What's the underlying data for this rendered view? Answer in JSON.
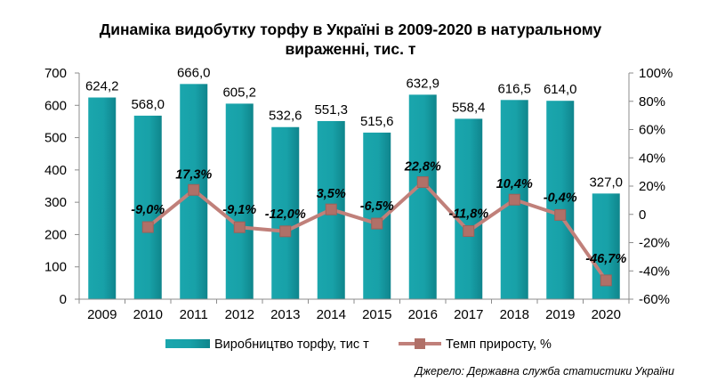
{
  "chart_data": {
    "type": "bar+line",
    "title_lines": [
      "Динаміка видобутку торфу в Україні в 2009-2020 в натуральному",
      "вираженні, тис. т"
    ],
    "categories": [
      "2009",
      "2010",
      "2011",
      "2012",
      "2013",
      "2014",
      "2015",
      "2016",
      "2017",
      "2018",
      "2019",
      "2020"
    ],
    "series": [
      {
        "name": "Виробництво торфу, тис т",
        "type": "bar",
        "axis": "left",
        "values": [
          624.2,
          568.0,
          666.0,
          605.2,
          532.6,
          551.3,
          515.6,
          632.9,
          558.4,
          616.5,
          614.0,
          327.0
        ],
        "labels": [
          "624,2",
          "568,0",
          "666,0",
          "605,2",
          "532,6",
          "551,3",
          "515,6",
          "632,9",
          "558,4",
          "616,5",
          "614,0",
          "327,0"
        ],
        "color": "#1aa6ad"
      },
      {
        "name": "Темп приросту, %",
        "type": "line",
        "axis": "right",
        "values": [
          null,
          -9.0,
          17.3,
          -9.1,
          -12.0,
          3.5,
          -6.5,
          22.8,
          -11.8,
          10.4,
          -0.4,
          -46.7
        ],
        "labels": [
          "",
          "-9,0%",
          "17,3%",
          "-9,1%",
          "-12,0%",
          "3,5%",
          "-6,5%",
          "22,8%",
          "-11,8%",
          "10,4%",
          "-0,4%",
          "-46,7%"
        ],
        "color": "#c0807a"
      }
    ],
    "y_left": {
      "min": 0,
      "max": 700,
      "ticks": [
        "0",
        "100",
        "200",
        "300",
        "400",
        "500",
        "600",
        "700"
      ]
    },
    "y_right": {
      "min": -60,
      "max": 100,
      "ticks": [
        "-60%",
        "-40%",
        "-20%",
        "0",
        "20%",
        "40%",
        "60%",
        "80%",
        "100%"
      ]
    },
    "grid": false,
    "legend_position": "bottom"
  },
  "source_note": "Джерело: Державна служба статистики України"
}
